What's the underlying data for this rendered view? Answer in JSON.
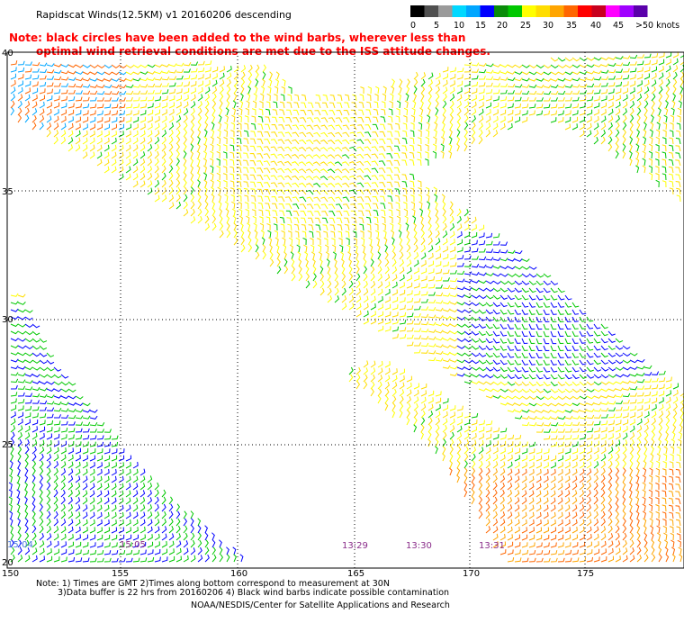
{
  "header": {
    "title": "Rapidscat Winds(12.5KM) v1 20160206 descending",
    "note_line1": "Note: black circles have been added to the wind barbs, wherever less than",
    "note_line2": "optimal wind retrieval conditions are met due to the ISS attitude changes."
  },
  "colorbar": {
    "colors": [
      "#000000",
      "#505050",
      "#9a9a9a",
      "#00d8ff",
      "#00a6ff",
      "#0000ff",
      "#0a8c0a",
      "#00c800",
      "#ffff00",
      "#ffdd00",
      "#ffa500",
      "#ff6600",
      "#ff0000",
      "#c8001e",
      "#ff00ff",
      "#a000ff",
      "#5a00aa"
    ],
    "labels": [
      "0",
      "5",
      "10",
      "15",
      "20",
      "25",
      "30",
      "35",
      "40",
      "45",
      ">50 knots"
    ]
  },
  "map": {
    "lat_labels": [
      "40",
      "35",
      "30",
      "25",
      "20"
    ],
    "lon_labels": [
      "150",
      "155",
      "160",
      "165",
      "170",
      "175"
    ],
    "time_labels": [
      {
        "text": "15:04",
        "color": "#4a7be0"
      },
      {
        "text": "15:05",
        "color": "#8a2d8a"
      },
      {
        "text": "13:29",
        "color": "#8a2d8a"
      },
      {
        "text": "13:30",
        "color": "#8a2d8a"
      },
      {
        "text": "13:31",
        "color": "#8a2d8a"
      }
    ]
  },
  "footer": {
    "line1": "Note: 1) Times are GMT 2)Times along bottom correspond to measurement at 30N",
    "line2": "3)Data buffer is 22 hrs from 20160206 4) Black wind barbs indicate possible contamination",
    "line3": "NOAA/NESDIS/Center for Satellite Applications and Research"
  }
}
